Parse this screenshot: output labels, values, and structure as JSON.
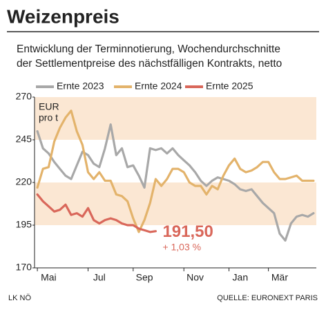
{
  "chart_data": {
    "type": "line",
    "title": "Weizenpreis",
    "subtitle": [
      "Entwicklung der Terminnotierung, Wochendurchschnitte",
      "der Settlementpreise des nächstfälligen Kontrakts, netto"
    ],
    "y_label": [
      "EUR",
      "pro t"
    ],
    "categories": [
      null,
      null,
      "Mai",
      null,
      null,
      null,
      null,
      null,
      null,
      null,
      null,
      "Jul",
      null,
      null,
      null,
      null,
      null,
      null,
      null,
      "Sep",
      null,
      null,
      null,
      null,
      null,
      null,
      null,
      null,
      "Nov",
      null,
      null,
      null,
      null,
      null,
      null,
      null,
      "Jan",
      null,
      null,
      null,
      null,
      null,
      null,
      "Mär",
      null,
      null,
      null,
      null,
      null,
      null
    ],
    "series": [
      {
        "name": "Ernte 2023",
        "color": "#a8a8a8",
        "values": [
          250,
          240,
          237,
          232,
          228,
          224,
          222,
          230,
          238,
          236,
          231,
          229,
          240,
          254,
          236,
          240,
          229,
          230,
          224,
          217,
          240,
          239,
          240,
          237,
          240,
          236,
          233,
          230,
          226,
          221,
          218,
          221,
          223,
          222,
          221,
          219,
          216,
          215,
          216,
          212,
          208,
          205,
          202,
          190,
          186,
          196,
          200,
          201,
          200,
          202
        ]
      },
      {
        "name": "Ernte 2024",
        "color": "#e3b36b",
        "values": [
          217,
          228,
          229,
          244,
          252,
          258,
          262,
          250,
          242,
          226,
          222,
          226,
          221,
          221,
          213,
          212,
          209,
          199,
          191,
          198,
          208,
          222,
          218,
          222,
          228,
          228,
          226,
          220,
          218,
          218,
          213,
          218,
          216,
          224,
          230,
          234,
          228,
          226,
          227,
          229,
          232,
          232,
          226,
          222,
          222,
          223,
          224,
          221,
          221,
          221
        ]
      },
      {
        "name": "Ernte 2025",
        "color": "#d9675a",
        "values": [
          213,
          209,
          206,
          203,
          204,
          207,
          201,
          202,
          200,
          205,
          198,
          196,
          198,
          199,
          198,
          196,
          195,
          195,
          193,
          192,
          191,
          191.5,
          null,
          null,
          null,
          null,
          null,
          null,
          null,
          null,
          null,
          null,
          null,
          null,
          null,
          null,
          null,
          null,
          null,
          null,
          null,
          null,
          null,
          null,
          null,
          null,
          null,
          null,
          null,
          null
        ]
      }
    ],
    "annotations": [
      "191,50",
      "+ 1,03 %"
    ],
    "ylim": [
      170,
      270
    ],
    "yticks": [
      170,
      195,
      220,
      245,
      270
    ],
    "bands": [
      [
        195,
        220
      ],
      [
        245,
        270
      ]
    ],
    "band_color": "#fbe7d3",
    "source": "QUELLE: EURONEXT PARIS",
    "credit": "LK NÖ"
  }
}
